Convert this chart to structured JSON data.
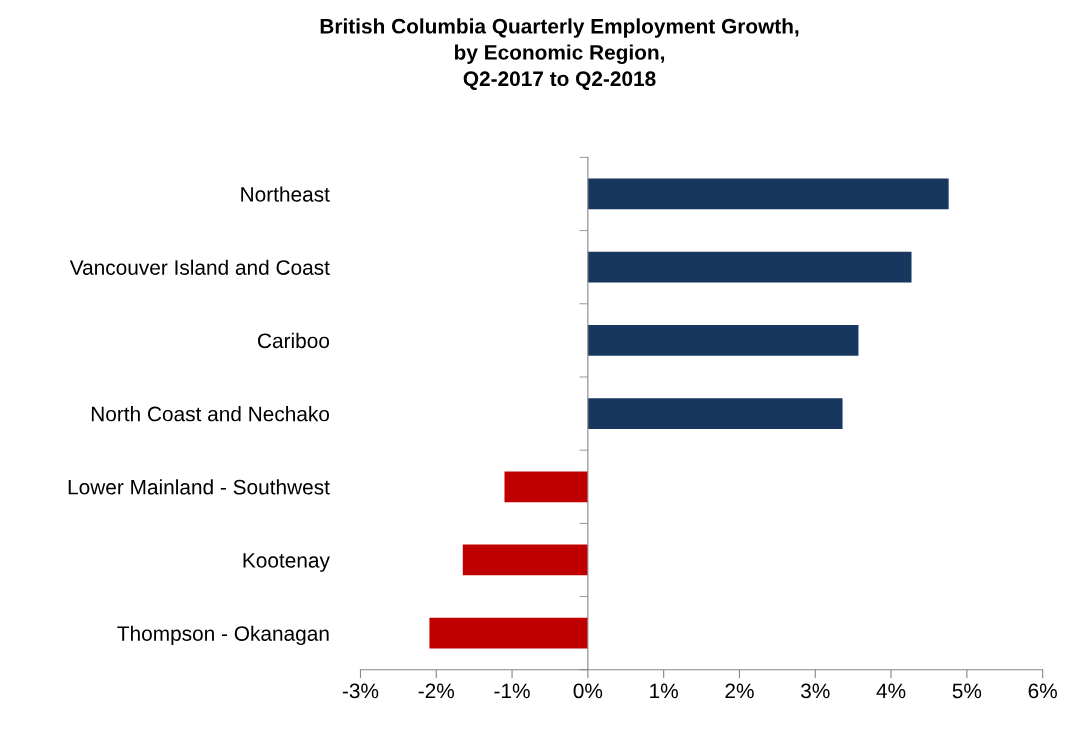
{
  "chart_data": {
    "type": "bar",
    "orientation": "horizontal",
    "title": "British Columbia Quarterly Employment Growth,\nby Economic Region,\nQ2-2017 to Q2-2018",
    "categories": [
      "Northeast",
      "Vancouver Island and Coast",
      "Cariboo",
      "North Coast and Nechako",
      "Lower Mainland - Southwest",
      "Kootenay",
      "Thompson - Okanagan"
    ],
    "values": [
      4.76,
      4.27,
      3.57,
      3.36,
      -1.1,
      -1.65,
      -2.09
    ],
    "colors": [
      "#17375e",
      "#17375e",
      "#17375e",
      "#17375e",
      "#c00000",
      "#c00000",
      "#c00000"
    ],
    "xlim": [
      -3,
      6
    ],
    "xticks": [
      {
        "value": -3,
        "label": "-3%"
      },
      {
        "value": -2,
        "label": "-2%"
      },
      {
        "value": -1,
        "label": "-1%"
      },
      {
        "value": 0,
        "label": "0%"
      },
      {
        "value": 1,
        "label": "1%"
      },
      {
        "value": 2,
        "label": "2%"
      },
      {
        "value": 3,
        "label": "3%"
      },
      {
        "value": 4,
        "label": "4%"
      },
      {
        "value": 5,
        "label": "5%"
      },
      {
        "value": 6,
        "label": "6%"
      }
    ],
    "legend": false
  }
}
